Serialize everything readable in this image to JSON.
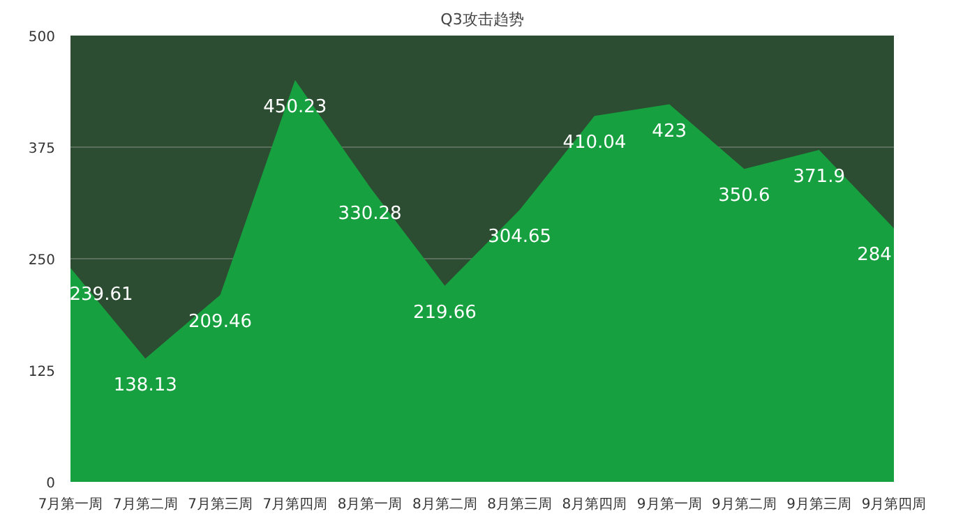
{
  "chart_data": {
    "type": "area",
    "title": "Q3攻击趋势",
    "categories": [
      "7月第一周",
      "7月第二周",
      "7月第三周",
      "7月第四周",
      "8月第一周",
      "8月第二周",
      "8月第三周",
      "8月第四周",
      "9月第一周",
      "9月第二周",
      "9月第三周",
      "9月第四周"
    ],
    "series": [
      {
        "color": "#17a03f",
        "values": [
          239.61,
          138.13,
          209.46,
          450.23,
          330.28,
          219.66,
          304.65,
          410.04,
          423,
          350.6,
          371.9,
          284
        ]
      }
    ],
    "bands": [
      {
        "axis": "y",
        "from": 0,
        "to": 500,
        "color": "#2c4d32"
      }
    ],
    "ylim": [
      0,
      500
    ],
    "yticks": [
      0,
      125,
      250,
      375,
      500
    ],
    "grid": "y",
    "data_labels": true
  }
}
